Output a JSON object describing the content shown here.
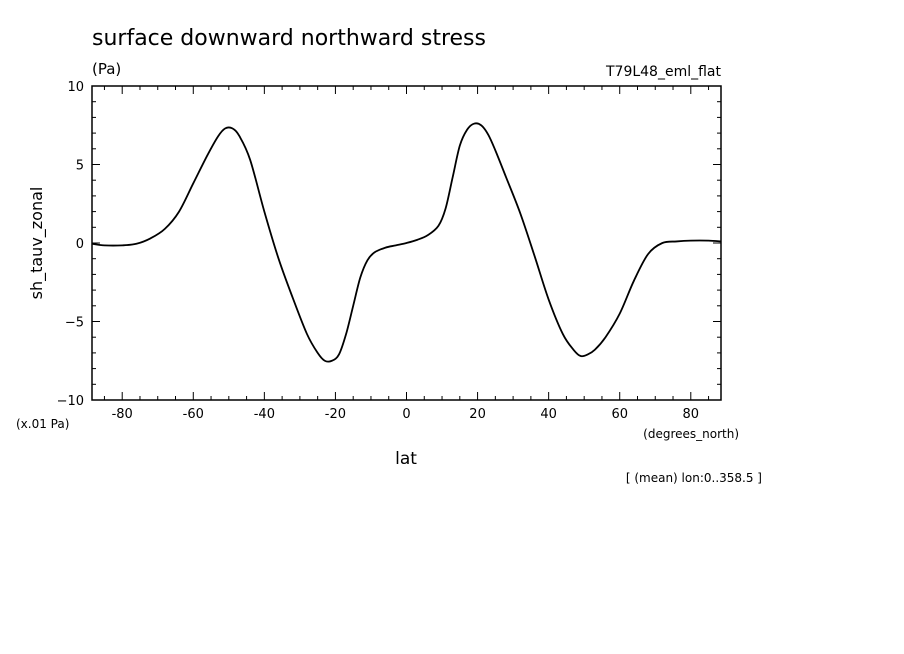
{
  "chart_data": {
    "type": "line",
    "title": "surface downward northward stress",
    "units": "(Pa)",
    "experiment": "T79L48_eml_flat",
    "ylabel": "sh_tauv_zonal",
    "xlabel": "lat",
    "x_units": "(degrees_north)",
    "y_scale_note": "(x.01 Pa)",
    "footnote": "[ (mean) lon:0..358.5 ]",
    "xlim": [
      -88.5,
      88.5
    ],
    "ylim": [
      -10,
      10
    ],
    "x_ticks": [
      {
        "value": -80,
        "label": "-80"
      },
      {
        "value": -60,
        "label": "-60"
      },
      {
        "value": -40,
        "label": "-40"
      },
      {
        "value": -20,
        "label": "-20"
      },
      {
        "value": 0,
        "label": "0"
      },
      {
        "value": 20,
        "label": "20"
      },
      {
        "value": 40,
        "label": "40"
      },
      {
        "value": 60,
        "label": "60"
      },
      {
        "value": 80,
        "label": "80"
      }
    ],
    "y_ticks": [
      {
        "value": 10,
        "label": "10"
      },
      {
        "value": 5,
        "label": "5"
      },
      {
        "value": 0,
        "label": "0"
      },
      {
        "value": -5,
        "label": "−5"
      },
      {
        "value": -10,
        "label": "−10"
      }
    ],
    "series": [
      {
        "x": [
          -88.5,
          -85,
          -80,
          -76,
          -72,
          -68,
          -64,
          -60,
          -56,
          -53,
          -51,
          -49,
          -47,
          -44,
          -40,
          -36,
          -32,
          -28,
          -25,
          -23,
          -21,
          -19,
          -17,
          -15,
          -13,
          -11,
          -9,
          -6,
          -3,
          0,
          3,
          6,
          9,
          11,
          13,
          15,
          17,
          19,
          21,
          23,
          25,
          28,
          32,
          36,
          40,
          44,
          47,
          49,
          51,
          53,
          56,
          60,
          64,
          68,
          72,
          76,
          80,
          85,
          88.5
        ],
        "y": [
          -0.05,
          -0.15,
          -0.15,
          -0.05,
          0.3,
          0.9,
          2.0,
          3.8,
          5.6,
          6.8,
          7.3,
          7.3,
          6.8,
          5.3,
          2.0,
          -1.0,
          -3.5,
          -5.8,
          -7.0,
          -7.5,
          -7.5,
          -7.1,
          -5.8,
          -4.0,
          -2.2,
          -1.1,
          -0.6,
          -0.3,
          -0.15,
          0.0,
          0.2,
          0.5,
          1.1,
          2.2,
          4.2,
          6.2,
          7.2,
          7.6,
          7.5,
          6.9,
          5.9,
          4.2,
          1.9,
          -0.8,
          -3.6,
          -5.8,
          -6.8,
          -7.2,
          -7.1,
          -6.8,
          -6.0,
          -4.5,
          -2.4,
          -0.7,
          0.0,
          0.1,
          0.15,
          0.15,
          0.1
        ]
      }
    ]
  }
}
